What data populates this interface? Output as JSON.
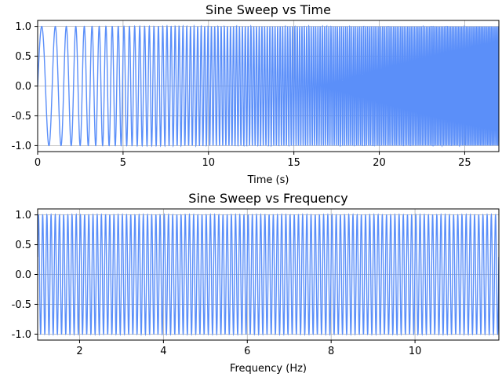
{
  "chart_data": [
    {
      "type": "line",
      "title": "Sine Sweep vs Time",
      "xlabel": "Time (s)",
      "ylabel": "",
      "xlim": [
        0,
        27
      ],
      "ylim": [
        -1.1,
        1.1
      ],
      "xticks": [
        "0",
        "5",
        "10",
        "15",
        "20",
        "25"
      ],
      "yticks": [
        "-1.0",
        "-0.5",
        "0.0",
        "0.5",
        "1.0"
      ],
      "grid": true,
      "color": "#5b8ff9",
      "series": [
        {
          "function": "sin(2*pi*(1*t + 0.2037*t^2))",
          "start_frequency_hz": 1,
          "end_frequency_hz": 12,
          "duration_s": 27
        }
      ]
    },
    {
      "type": "line",
      "title": "Sine Sweep vs Frequency",
      "xlabel": "Frequency (Hz)",
      "ylabel": "",
      "xlim": [
        1,
        12
      ],
      "ylim": [
        -1.1,
        1.1
      ],
      "xticks": [
        "2",
        "4",
        "6",
        "8",
        "10"
      ],
      "yticks": [
        "-1.0",
        "-0.5",
        "0.0",
        "0.5",
        "1.0"
      ],
      "grid": true,
      "color": "#5b8ff9",
      "series": [
        {
          "function": "sin(2*pi*(1*t + 0.2037*t^2)) plotted against instantaneous frequency",
          "start_frequency_hz": 1,
          "end_frequency_hz": 12
        }
      ]
    }
  ]
}
